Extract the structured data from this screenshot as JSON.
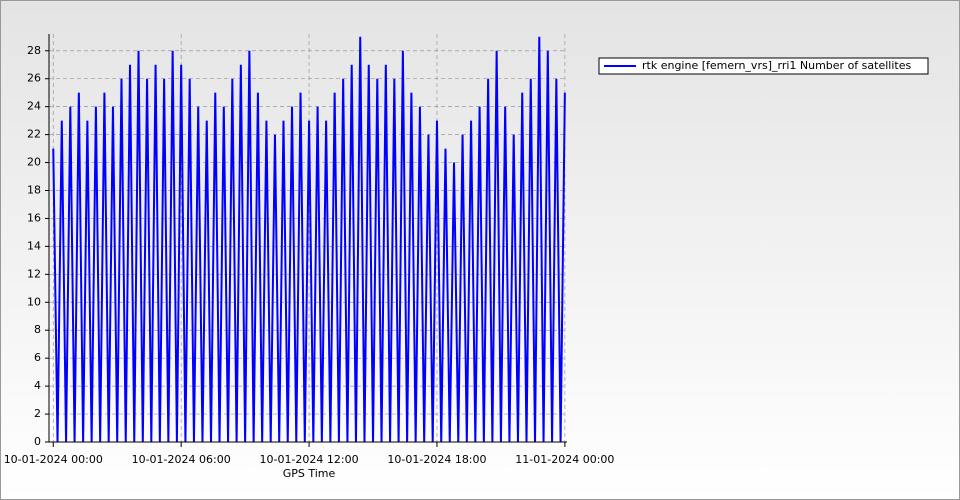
{
  "chart_data": {
    "type": "line",
    "x_label": "GPS Time",
    "x": [
      0,
      0.2,
      0.4,
      0.6,
      0.8,
      1,
      1.2,
      1.4,
      1.6,
      1.8,
      2,
      2.2,
      2.4,
      2.6,
      2.8,
      3,
      3.2,
      3.4,
      3.6,
      3.8,
      4,
      4.2,
      4.4,
      4.6,
      4.8,
      5,
      5.2,
      5.4,
      5.6,
      5.8,
      6,
      6.2,
      6.4,
      6.6,
      6.8,
      7,
      7.2,
      7.4,
      7.6,
      7.8,
      8,
      8.2,
      8.4,
      8.6,
      8.8,
      9,
      9.2,
      9.4,
      9.6,
      9.8,
      10,
      10.2,
      10.4,
      10.6,
      10.8,
      11,
      11.2,
      11.4,
      11.6,
      11.8,
      12,
      12.2,
      12.4,
      12.6,
      12.8,
      13,
      13.2,
      13.4,
      13.6,
      13.8,
      14,
      14.2,
      14.4,
      14.6,
      14.8,
      15,
      15.2,
      15.4,
      15.6,
      15.8,
      16,
      16.2,
      16.4,
      16.6,
      16.8,
      17,
      17.2,
      17.4,
      17.6,
      17.8,
      18,
      18.2,
      18.4,
      18.6,
      18.8,
      19,
      19.2,
      19.4,
      19.6,
      19.8,
      20,
      20.2,
      20.4,
      20.6,
      20.8,
      21,
      21.2,
      21.4,
      21.6,
      21.8,
      22,
      22.2,
      22.4,
      22.6,
      22.8,
      23,
      23.2,
      23.4,
      23.6,
      23.8,
      24
    ],
    "series": [
      {
        "name": "rtk engine [femern_vrs]_rri1 Number of satellites",
        "color": "#0000ff",
        "values": [
          21,
          0,
          23,
          0,
          24,
          0,
          25,
          0,
          23,
          0,
          24,
          0,
          25,
          0,
          24,
          0,
          26,
          0,
          27,
          0,
          28,
          0,
          26,
          0,
          27,
          0,
          26,
          0,
          28,
          0,
          27,
          0,
          26,
          0,
          24,
          0,
          23,
          0,
          25,
          0,
          24,
          0,
          26,
          0,
          27,
          0,
          28,
          0,
          25,
          0,
          23,
          0,
          22,
          0,
          23,
          0,
          24,
          0,
          25,
          0,
          23,
          0,
          24,
          0,
          23,
          0,
          25,
          0,
          26,
          0,
          27,
          0,
          29,
          0,
          27,
          0,
          26,
          0,
          27,
          0,
          26,
          0,
          28,
          0,
          25,
          0,
          24,
          0,
          22,
          0,
          23,
          0,
          21,
          0,
          20,
          0,
          22,
          0,
          23,
          0,
          24,
          0,
          26,
          0,
          28,
          0,
          24,
          0,
          22,
          0,
          25,
          0,
          26,
          0,
          29,
          0,
          28,
          0,
          26,
          0,
          25
        ]
      }
    ],
    "xlim": [
      -0.2,
      24.1
    ],
    "xticks": [
      {
        "value": 0,
        "label": "10-01-2024 00:00"
      },
      {
        "value": 6,
        "label": "10-01-2024 06:00"
      },
      {
        "value": 12,
        "label": "10-01-2024 12:00"
      },
      {
        "value": 18,
        "label": "10-01-2024 18:00"
      },
      {
        "value": 24,
        "label": "11-01-2024 00:00"
      }
    ],
    "ylim": [
      0,
      29.2
    ],
    "yticks": [
      0,
      2,
      4,
      6,
      8,
      10,
      12,
      14,
      16,
      18,
      20,
      22,
      24,
      26,
      28
    ],
    "grid": true
  }
}
